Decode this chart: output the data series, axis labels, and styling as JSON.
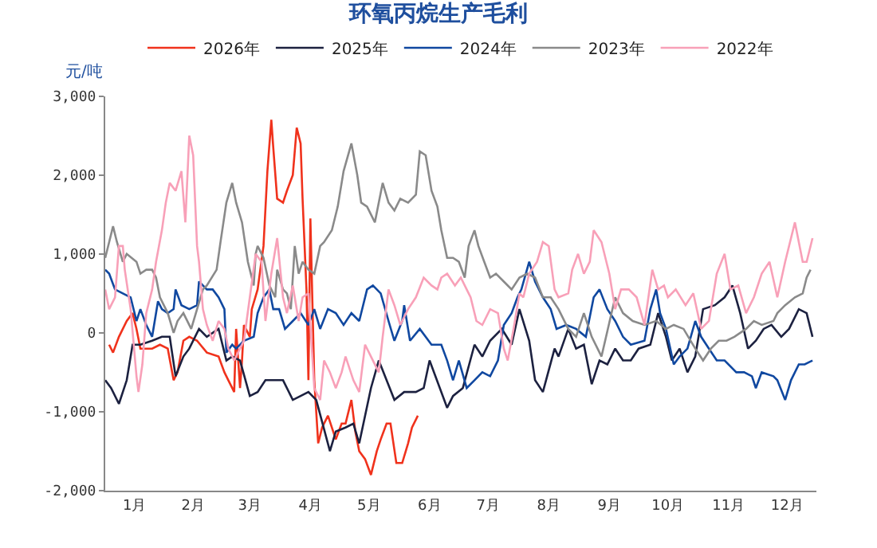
{
  "chart_data": {
    "type": "line",
    "title": "环氧丙烷生产毛利",
    "ylabel": "元/吨",
    "xlim": [
      "--01-01",
      "--12-31"
    ],
    "xticks": [
      {
        "value": "--01-16",
        "label": "1月"
      },
      {
        "value": "--02-15",
        "label": "2月"
      },
      {
        "value": "--03-16",
        "label": "3月"
      },
      {
        "value": "--04-16",
        "label": "4月"
      },
      {
        "value": "--05-16",
        "label": "5月"
      },
      {
        "value": "--06-16",
        "label": "6月"
      },
      {
        "value": "--07-16",
        "label": "7月"
      },
      {
        "value": "--08-16",
        "label": "8月"
      },
      {
        "value": "--09-16",
        "label": "9月"
      },
      {
        "value": "--10-16",
        "label": "10月"
      },
      {
        "value": "--11-16",
        "label": "11月"
      },
      {
        "value": "--12-16",
        "label": "12月"
      }
    ],
    "ylim": [
      -2000,
      3000
    ],
    "yticks": [
      {
        "value": -2000,
        "label": "-2,000"
      },
      {
        "value": -1000,
        "label": "-1,000"
      },
      {
        "value": 0,
        "label": "0"
      },
      {
        "value": 1000,
        "label": "1,000"
      },
      {
        "value": 2000,
        "label": "2,000"
      },
      {
        "value": 3000,
        "label": "3,000"
      }
    ],
    "legend": "top",
    "line_style": "solid",
    "series": [
      {
        "name": "2026年",
        "color": "#f0321c",
        "x": [
          "--01-03",
          "--01-05",
          "--01-08",
          "--01-12",
          "--01-15",
          "--01-17",
          "--01-19",
          "--01-25",
          "--01-29",
          "--02-02",
          "--02-05",
          "--02-07",
          "--02-10",
          "--02-13",
          "--02-17",
          "--02-22",
          "--02-28",
          "--03-03",
          "--03-05",
          "--03-08",
          "--03-09",
          "--03-11",
          "--03-12",
          "--03-13",
          "--03-16",
          "--03-17",
          "--03-20",
          "--03-23",
          "--03-25",
          "--03-27",
          "--03-28",
          "--03-30",
          "--04-02",
          "--04-04",
          "--04-07",
          "--04-09",
          "--04-11",
          "--04-12",
          "--04-14",
          "--04-15",
          "--04-16",
          "--04-18",
          "--04-20",
          "--04-22",
          "--04-25",
          "--04-29",
          "--05-02",
          "--05-04",
          "--05-07",
          "--05-09",
          "--05-11",
          "--05-14",
          "--05-17",
          "--05-20",
          "--05-22",
          "--05-25",
          "--05-27",
          "--05-30",
          "--06-02",
          "--06-05",
          "--06-07",
          "--06-10"
        ],
        "values": [
          -150,
          -250,
          -50,
          150,
          250,
          50,
          -200,
          -200,
          -150,
          -200,
          -600,
          -500,
          -100,
          -50,
          -100,
          -250,
          -300,
          -500,
          -600,
          -750,
          50,
          -700,
          -350,
          100,
          -50,
          300,
          550,
          1100,
          2050,
          2700,
          2350,
          1700,
          1650,
          1800,
          2000,
          2600,
          2400,
          1700,
          550,
          -600,
          1450,
          -600,
          -1400,
          -1200,
          -1050,
          -1350,
          -1150,
          -1150,
          -850,
          -1250,
          -1500,
          -1600,
          -1800,
          -1500,
          -1350,
          -1150,
          -1150,
          -1650,
          -1650,
          -1400,
          -1200,
          -1050
        ]
      },
      {
        "name": "2025年",
        "color": "#1c2140",
        "x": [
          "--01-01",
          "--01-04",
          "--01-08",
          "--01-12",
          "--01-15",
          "--01-19",
          "--01-25",
          "--01-30",
          "--02-03",
          "--02-06",
          "--02-10",
          "--02-13",
          "--02-18",
          "--02-22",
          "--02-28",
          "--03-04",
          "--03-07",
          "--03-11",
          "--03-16",
          "--03-20",
          "--03-24",
          "--03-30",
          "--04-02",
          "--04-07",
          "--04-11",
          "--04-15",
          "--04-19",
          "--04-26",
          "--04-29",
          "--05-04",
          "--05-08",
          "--05-11",
          "--05-17",
          "--05-21",
          "--05-25",
          "--05-29",
          "--06-03",
          "--06-09",
          "--06-13",
          "--06-16",
          "--06-25",
          "--06-28",
          "--07-03",
          "--07-09",
          "--07-13",
          "--07-17",
          "--07-23",
          "--07-28",
          "--08-01",
          "--08-06",
          "--08-09",
          "--08-13",
          "--08-19",
          "--08-21",
          "--08-26",
          "--08-30",
          "--09-03",
          "--09-07",
          "--09-11",
          "--09-15",
          "--09-19",
          "--09-23",
          "--09-27",
          "--10-01",
          "--10-07",
          "--10-11",
          "--10-15",
          "--10-18",
          "--10-22",
          "--10-26",
          "--10-30",
          "--11-03",
          "--11-09",
          "--11-14",
          "--11-18",
          "--11-22",
          "--11-26",
          "--11-30",
          "--12-04",
          "--12-08",
          "--12-13",
          "--12-17",
          "--12-22",
          "--12-26",
          "--12-29"
        ],
        "values": [
          -600,
          -700,
          -900,
          -600,
          -150,
          -150,
          -100,
          -50,
          -50,
          -550,
          -300,
          -200,
          50,
          -50,
          50,
          -350,
          -300,
          -350,
          -800,
          -750,
          -600,
          -600,
          -600,
          -850,
          -800,
          -750,
          -850,
          -1500,
          -1250,
          -1200,
          -1150,
          -1400,
          -700,
          -350,
          -600,
          -850,
          -750,
          -750,
          -700,
          -350,
          -950,
          -800,
          -700,
          -150,
          -300,
          -100,
          50,
          -150,
          300,
          -100,
          -600,
          -750,
          -200,
          -300,
          50,
          -200,
          -150,
          -650,
          -350,
          -400,
          -200,
          -350,
          -350,
          -200,
          -150,
          250,
          -50,
          -350,
          -200,
          -500,
          -300,
          300,
          350,
          450,
          600,
          250,
          -200,
          -100,
          50,
          100,
          -50,
          50,
          300,
          250,
          -50
        ]
      },
      {
        "name": "2024年",
        "color": "#1048a0",
        "x": [
          "--01-01",
          "--01-03",
          "--01-06",
          "--01-10",
          "--01-14",
          "--01-17",
          "--01-19",
          "--01-22",
          "--01-25",
          "--01-28",
          "--01-30",
          "--02-02",
          "--02-05",
          "--02-06",
          "--02-09",
          "--02-13",
          "--02-17",
          "--02-18",
          "--02-22",
          "--02-25",
          "--02-28",
          "--03-03",
          "--03-04",
          "--03-07",
          "--03-09",
          "--03-13",
          "--03-18",
          "--03-20",
          "--03-23",
          "--03-26",
          "--03-28",
          "--03-31",
          "--04-03",
          "--04-07",
          "--04-11",
          "--04-15",
          "--04-18",
          "--04-21",
          "--04-25",
          "--04-29",
          "--05-03",
          "--05-07",
          "--05-11",
          "--05-15",
          "--05-18",
          "--05-22",
          "--05-26",
          "--05-29",
          "--06-02",
          "--06-03",
          "--06-06",
          "--06-11",
          "--06-17",
          "--06-22",
          "--06-25",
          "--06-28",
          "--07-01",
          "--07-05",
          "--07-09",
          "--07-13",
          "--07-17",
          "--07-21",
          "--07-24",
          "--07-28",
          "--07-31",
          "--08-02",
          "--08-06",
          "--08-09",
          "--08-13",
          "--08-17",
          "--08-20",
          "--08-25",
          "--08-30",
          "--09-04",
          "--09-08",
          "--09-11",
          "--09-15",
          "--09-19",
          "--09-23",
          "--09-27",
          "--10-04",
          "--10-07",
          "--10-10",
          "--10-12",
          "--10-15",
          "--10-19",
          "--10-22",
          "--10-26",
          "--10-30",
          "--11-02",
          "--11-06",
          "--11-10",
          "--11-14",
          "--11-20",
          "--11-24",
          "--11-28",
          "--11-30",
          "--12-03",
          "--12-09",
          "--12-11",
          "--12-15",
          "--12-18",
          "--12-22",
          "--12-25",
          "--12-29"
        ],
        "values": [
          800,
          750,
          550,
          500,
          450,
          150,
          300,
          100,
          -50,
          400,
          300,
          250,
          300,
          550,
          350,
          300,
          350,
          650,
          550,
          550,
          450,
          300,
          -250,
          -150,
          -200,
          -100,
          -50,
          250,
          450,
          550,
          300,
          300,
          50,
          150,
          250,
          100,
          300,
          50,
          300,
          250,
          100,
          250,
          150,
          550,
          600,
          500,
          150,
          -100,
          150,
          350,
          -100,
          50,
          -150,
          -150,
          -350,
          -600,
          -350,
          -700,
          -600,
          -500,
          -550,
          -350,
          100,
          250,
          450,
          550,
          900,
          650,
          450,
          300,
          50,
          100,
          50,
          -50,
          450,
          550,
          300,
          150,
          -50,
          -150,
          -100,
          300,
          550,
          250,
          50,
          -400,
          -300,
          -200,
          150,
          -50,
          -200,
          -350,
          -350,
          -500,
          -500,
          -550,
          -700,
          -500,
          -550,
          -600,
          -850,
          -600,
          -400,
          -400,
          -350
        ]
      },
      {
        "name": "2023年",
        "color": "#8a8a8a",
        "x": [
          "--01-01",
          "--01-03",
          "--01-05",
          "--01-07",
          "--01-10",
          "--01-12",
          "--01-17",
          "--01-19",
          "--01-22",
          "--01-25",
          "--01-27",
          "--01-29",
          "--02-02",
          "--02-05",
          "--02-07",
          "--02-10",
          "--02-14",
          "--02-17",
          "--02-20",
          "--02-22",
          "--02-27",
          "--03-01",
          "--03-04",
          "--03-07",
          "--03-09",
          "--03-12",
          "--03-15",
          "--03-18",
          "--03-19",
          "--03-20",
          "--03-23",
          "--03-26",
          "--03-29",
          "--03-30",
          "--04-02",
          "--04-04",
          "--04-06",
          "--04-08",
          "--04-10",
          "--04-12",
          "--04-15",
          "--04-18",
          "--04-21",
          "--04-23",
          "--04-27",
          "--04-30",
          "--05-03",
          "--05-07",
          "--05-10",
          "--05-12",
          "--05-15",
          "--05-19",
          "--05-23",
          "--05-26",
          "--05-29",
          "--06-01",
          "--06-05",
          "--06-09",
          "--06-11",
          "--06-14",
          "--06-17",
          "--06-20",
          "--06-22",
          "--06-25",
          "--06-28",
          "--07-01",
          "--07-04",
          "--07-06",
          "--07-09",
          "--07-11",
          "--07-14",
          "--07-17",
          "--07-20",
          "--07-24",
          "--07-28",
          "--08-01",
          "--08-05",
          "--08-09",
          "--08-13",
          "--08-17",
          "--08-21",
          "--08-26",
          "--08-30",
          "--09-03",
          "--09-07",
          "--09-12",
          "--09-19",
          "--09-23",
          "--09-28",
          "--10-04",
          "--10-10",
          "--10-15",
          "--10-19",
          "--10-24",
          "--10-30",
          "--11-03",
          "--11-07",
          "--11-11",
          "--11-15",
          "--11-19",
          "--11-25",
          "--11-29",
          "--12-03",
          "--12-09",
          "--12-11",
          "--12-15",
          "--12-20",
          "--12-24",
          "--12-26",
          "--12-28"
        ],
        "values": [
          950,
          1150,
          1350,
          1150,
          900,
          1000,
          900,
          750,
          800,
          800,
          700,
          450,
          250,
          0,
          150,
          250,
          50,
          300,
          550,
          600,
          800,
          1150,
          1650,
          1900,
          1650,
          1400,
          900,
          600,
          1000,
          1100,
          950,
          600,
          450,
          800,
          550,
          500,
          300,
          1100,
          750,
          900,
          800,
          750,
          1100,
          1150,
          1300,
          1600,
          2050,
          2400,
          2000,
          1650,
          1600,
          1400,
          1900,
          1650,
          1550,
          1700,
          1650,
          1750,
          2300,
          2250,
          1800,
          1600,
          1300,
          950,
          950,
          900,
          700,
          1100,
          1300,
          1100,
          900,
          700,
          750,
          650,
          550,
          700,
          750,
          700,
          450,
          450,
          300,
          50,
          -50,
          250,
          -50,
          -300,
          450,
          250,
          150,
          100,
          150,
          50,
          100,
          50,
          -200,
          -350,
          -200,
          -100,
          -100,
          -50,
          50,
          150,
          100,
          150,
          250,
          350,
          450,
          500,
          700,
          800
        ]
      },
      {
        "name": "2022年",
        "color": "#f8a0b8",
        "x": [
          "--01-01",
          "--01-03",
          "--01-06",
          "--01-08",
          "--01-10",
          "--01-11",
          "--01-14",
          "--01-17",
          "--01-18",
          "--01-20",
          "--01-22",
          "--01-25",
          "--01-27",
          "--01-30",
          "--02-01",
          "--02-03",
          "--02-06",
          "--02-09",
          "--02-11",
          "--02-13",
          "--02-15",
          "--02-17",
          "--02-18",
          "--02-20",
          "--02-22",
          "--02-25",
          "--02-28",
          "--03-03",
          "--03-05",
          "--03-08",
          "--03-11",
          "--03-13",
          "--03-16",
          "--03-19",
          "--03-22",
          "--03-24",
          "--03-27",
          "--03-30",
          "--04-02",
          "--04-04",
          "--04-07",
          "--04-10",
          "--04-12",
          "--04-15",
          "--04-18",
          "--04-21",
          "--04-23",
          "--04-26",
          "--04-29",
          "--05-02",
          "--05-04",
          "--05-08",
          "--05-11",
          "--05-14",
          "--05-17",
          "--05-21",
          "--05-23",
          "--05-26",
          "--05-29",
          "--06-01",
          "--06-05",
          "--06-09",
          "--06-13",
          "--06-17",
          "--06-20",
          "--06-22",
          "--06-25",
          "--06-29",
          "--07-02",
          "--07-05",
          "--07-07",
          "--07-10",
          "--07-13",
          "--07-17",
          "--07-21",
          "--07-24",
          "--07-26",
          "--07-29",
          "--08-01",
          "--08-03",
          "--08-06",
          "--08-10",
          "--08-13",
          "--08-16",
          "--08-19",
          "--08-21",
          "--08-26",
          "--08-28",
          "--08-31",
          "--09-03",
          "--09-06",
          "--09-08",
          "--09-12",
          "--09-16",
          "--09-19",
          "--09-22",
          "--09-26",
          "--09-30",
          "--10-04",
          "--10-08",
          "--10-11",
          "--10-14",
          "--10-16",
          "--10-20",
          "--10-25",
          "--10-29",
          "--11-02",
          "--11-06",
          "--11-10",
          "--11-14",
          "--11-17",
          "--11-21",
          "--11-25",
          "--11-29",
          "--12-03",
          "--12-07",
          "--12-11",
          "--12-15",
          "--12-20",
          "--12-24",
          "--12-26",
          "--12-29"
        ],
        "values": [
          550,
          300,
          450,
          1100,
          1100,
          800,
          300,
          -550,
          -750,
          -400,
          250,
          550,
          900,
          1300,
          1650,
          1900,
          1800,
          2050,
          1400,
          2500,
          2250,
          1100,
          900,
          300,
          100,
          -100,
          150,
          50,
          -200,
          -350,
          -200,
          -100,
          450,
          1000,
          900,
          150,
          750,
          1200,
          450,
          250,
          600,
          150,
          450,
          500,
          -700,
          -850,
          -350,
          -500,
          -700,
          -500,
          -300,
          -600,
          -750,
          -150,
          -300,
          -500,
          -50,
          550,
          350,
          100,
          300,
          450,
          700,
          600,
          550,
          700,
          750,
          600,
          700,
          550,
          450,
          150,
          100,
          300,
          250,
          -200,
          -350,
          50,
          500,
          450,
          750,
          900,
          1150,
          1100,
          550,
          450,
          500,
          800,
          1000,
          750,
          900,
          1300,
          1150,
          750,
          300,
          550,
          550,
          450,
          100,
          800,
          550,
          600,
          450,
          550,
          350,
          500,
          50,
          150,
          750,
          1000,
          550,
          600,
          250,
          450,
          750,
          900,
          450,
          900,
          1400,
          900,
          900,
          1200
        ]
      }
    ]
  }
}
